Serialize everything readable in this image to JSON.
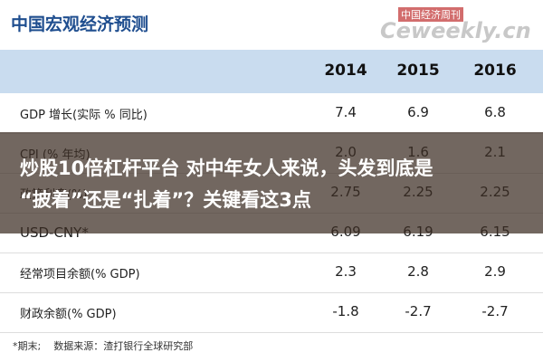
{
  "header": {
    "title": "中国宏观经济预测",
    "watermark_top": "中国经济周刊",
    "watermark": "Ceweekly.cn"
  },
  "table": {
    "columns": [
      "2014",
      "2015",
      "2016"
    ],
    "rows": [
      [
        "GDP 增长(实际 % 同比)",
        "7.4",
        "6.9",
        "6.8"
      ],
      [
        "CPI (% 年均)",
        "2.0",
        "1.6",
        "2.1"
      ],
      [
        "政策利率(%)",
        "2.75",
        "2.25",
        "2.25"
      ],
      [
        "USD-CNY*",
        "6.09",
        "6.19",
        "6.15"
      ],
      [
        "经常项目余额(% GDP)",
        "2.3",
        "2.8",
        "2.9"
      ],
      [
        "财政余额(% GDP)",
        "-1.8",
        "-2.7",
        "-2.7"
      ]
    ]
  },
  "footnote": "*期末;    数据来源：渣打银行全球研究部",
  "overlay": {
    "line1": "炒股10倍杠杆平台 对中年女人来说，头发到底是",
    "line2": "“披着”还是“扎着”？关键看这3点"
  }
}
